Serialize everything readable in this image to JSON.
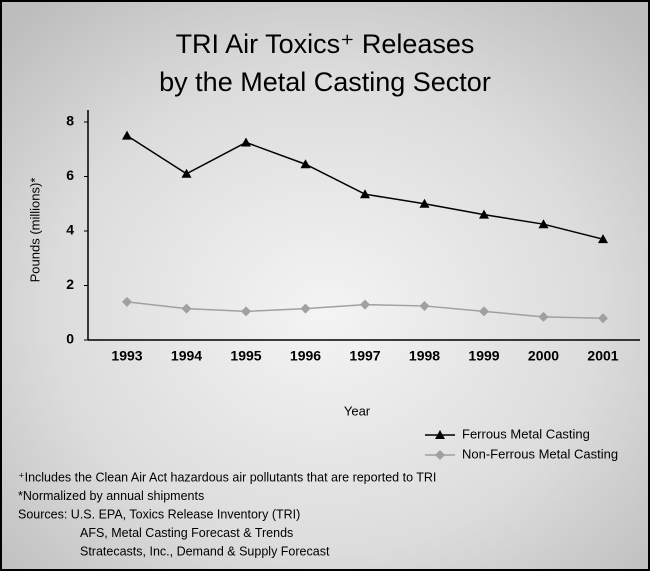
{
  "chart_data": {
    "type": "line",
    "title": [
      "TRI Air Toxics⁺ Releases",
      "by the Metal Casting Sector"
    ],
    "x_label": "Year",
    "y_label": "Pounds (millions)*",
    "categories": [
      "1993",
      "1994",
      "1995",
      "1996",
      "1997",
      "1998",
      "1999",
      "2000",
      "2001"
    ],
    "series": [
      {
        "name": "Ferrous Metal Casting",
        "color": "#000000",
        "marker": "triangle",
        "values": [
          7.5,
          6.1,
          7.25,
          6.45,
          5.35,
          5.0,
          4.6,
          4.25,
          3.7
        ]
      },
      {
        "name": "Non-Ferrous Metal Casting",
        "color": "#a0a0a0",
        "marker": "diamond",
        "values": [
          1.4,
          1.15,
          1.05,
          1.15,
          1.3,
          1.25,
          1.05,
          0.85,
          0.8
        ]
      }
    ],
    "ylim": [
      0,
      8
    ],
    "yticks": [
      0,
      2,
      4,
      6,
      8
    ],
    "footnotes": [
      "⁺Includes the Clean Air Act hazardous air pollutants that are reported to TRI",
      "*Normalized by annual shipments",
      "Sources: U.S. EPA, Toxics Release Inventory (TRI)",
      "AFS, Metal Casting Forecast & Trends",
      "Stratecasts, Inc., Demand & Supply Forecast"
    ]
  }
}
